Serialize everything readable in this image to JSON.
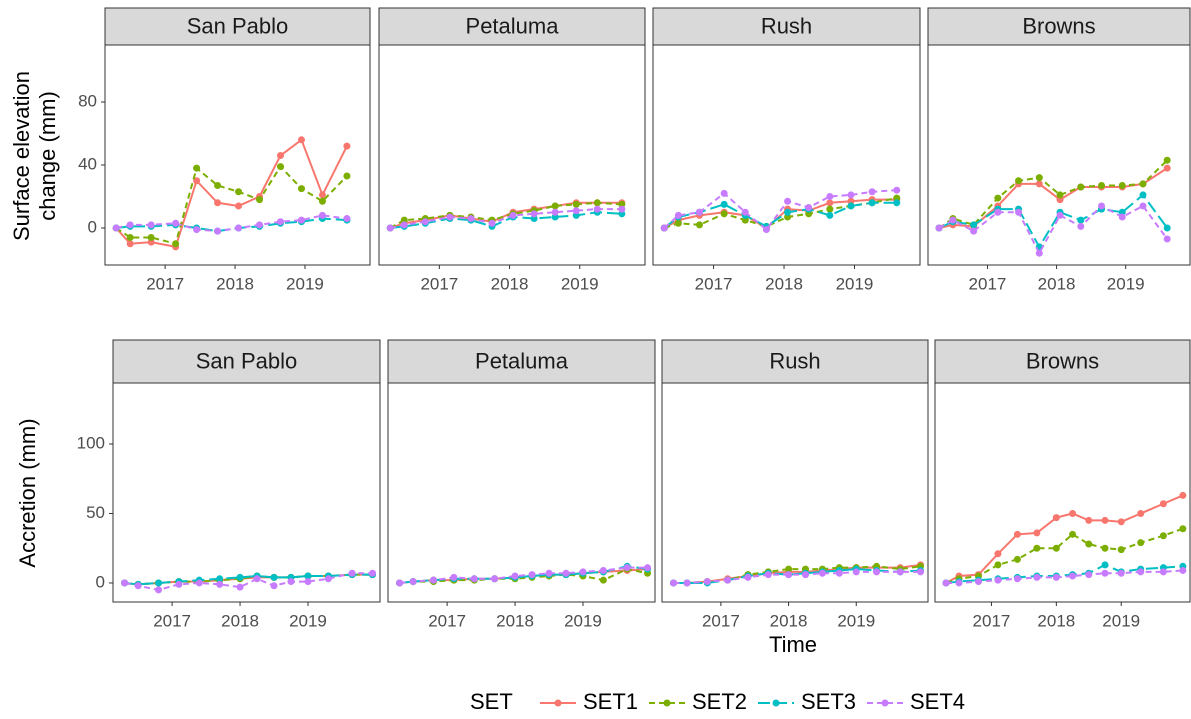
{
  "chart_data": [
    {
      "type": "line",
      "ylabel": "Surface elevation change (mm)",
      "x": [
        2016.3,
        2016.5,
        2016.8,
        2017.15,
        2017.45,
        2017.75,
        2018.05,
        2018.35,
        2018.65,
        2018.95,
        2019.25,
        2019.6
      ],
      "xlim": [
        2016.14,
        2019.93
      ],
      "xticks": [
        2017,
        2018,
        2019
      ],
      "ylim": [
        -23.5,
        116.2
      ],
      "yticks": [
        0,
        40,
        80
      ],
      "facets": [
        {
          "title": "San Pablo",
          "series": [
            {
              "name": "SET1",
              "color": "#F8766D",
              "dash": "solid",
              "values": [
                0,
                -10,
                -9,
                -12,
                30,
                16,
                14,
                20,
                46,
                56,
                21,
                52
              ]
            },
            {
              "name": "SET2",
              "color": "#7CAE00",
              "dash": "dashed",
              "values": [
                0,
                -6,
                -6,
                -10,
                38,
                27,
                23,
                18,
                39,
                25,
                17,
                33
              ]
            },
            {
              "name": "SET3",
              "color": "#00BFC4",
              "dash": "longdash",
              "values": [
                0,
                1,
                1,
                2,
                0,
                -2,
                0,
                1,
                3,
                4,
                6,
                5
              ]
            },
            {
              "name": "SET4",
              "color": "#C77CFF",
              "dash": "dashed",
              "values": [
                0,
                2,
                2,
                3,
                -1,
                -2,
                0,
                2,
                4,
                5,
                8,
                6
              ]
            }
          ]
        },
        {
          "title": "Petaluma",
          "series": [
            {
              "name": "SET1",
              "color": "#F8766D",
              "dash": "solid",
              "values": [
                0,
                3,
                5,
                8,
                6,
                4,
                10,
                12,
                14,
                16,
                16,
                16
              ]
            },
            {
              "name": "SET2",
              "color": "#7CAE00",
              "dash": "dashed",
              "values": [
                0,
                5,
                6,
                8,
                7,
                5,
                9,
                11,
                14,
                15,
                16,
                15
              ]
            },
            {
              "name": "SET3",
              "color": "#00BFC4",
              "dash": "longdash",
              "values": [
                0,
                1,
                3,
                6,
                5,
                1,
                7,
                6,
                7,
                8,
                10,
                9
              ]
            },
            {
              "name": "SET4",
              "color": "#C77CFF",
              "dash": "dashed",
              "values": [
                0,
                2,
                4,
                7,
                6,
                3,
                8,
                9,
                10,
                11,
                12,
                12
              ]
            }
          ]
        },
        {
          "title": "Rush",
          "series": [
            {
              "name": "SET1",
              "color": "#F8766D",
              "dash": "solid",
              "values": [
                0,
                5,
                8,
                10,
                8,
                0,
                12,
                11,
                16,
                17,
                18,
                18
              ]
            },
            {
              "name": "SET2",
              "color": "#7CAE00",
              "dash": "dashed",
              "values": [
                0,
                3,
                2,
                9,
                5,
                1,
                7,
                9,
                12,
                14,
                16,
                19
              ]
            },
            {
              "name": "SET3",
              "color": "#00BFC4",
              "dash": "longdash",
              "values": [
                0,
                7,
                10,
                15,
                8,
                1,
                10,
                12,
                8,
                14,
                16,
                16
              ]
            },
            {
              "name": "SET4",
              "color": "#C77CFF",
              "dash": "dashed",
              "values": [
                0,
                8,
                10,
                22,
                10,
                -1,
                17,
                13,
                20,
                21,
                23,
                24
              ]
            }
          ]
        },
        {
          "title": "Browns",
          "series": [
            {
              "name": "SET1",
              "color": "#F8766D",
              "dash": "solid",
              "values": [
                0,
                2,
                1,
                14,
                28,
                28,
                18,
                26,
                26,
                26,
                28,
                38
              ]
            },
            {
              "name": "SET2",
              "color": "#7CAE00",
              "dash": "dashed",
              "values": [
                0,
                6,
                2,
                19,
                30,
                32,
                21,
                26,
                27,
                27,
                28,
                43
              ]
            },
            {
              "name": "SET3",
              "color": "#00BFC4",
              "dash": "longdash",
              "values": [
                0,
                4,
                2,
                12,
                12,
                -12,
                10,
                5,
                12,
                10,
                21,
                0
              ]
            },
            {
              "name": "SET4",
              "color": "#C77CFF",
              "dash": "dashed",
              "values": [
                0,
                5,
                -2,
                10,
                10,
                -16,
                8,
                1,
                14,
                7,
                14,
                -7
              ]
            }
          ]
        }
      ]
    },
    {
      "type": "line",
      "ylabel": "Accretion (mm)",
      "xlabel": "Time",
      "x": [
        2016.3,
        2016.5,
        2016.8,
        2017.1,
        2017.4,
        2017.7,
        2018.0,
        2018.25,
        2018.5,
        2018.75,
        2019.0,
        2019.3,
        2019.65,
        2019.95
      ],
      "xlim": [
        2016.13,
        2020.06
      ],
      "xticks": [
        2017,
        2018,
        2019
      ],
      "ylim": [
        -13.7,
        143.9
      ],
      "yticks": [
        0,
        50,
        100
      ],
      "facets": [
        {
          "title": "San Pablo",
          "series": [
            {
              "name": "SET1",
              "color": "#F8766D",
              "dash": "solid",
              "values": [
                0,
                -1,
                0,
                1,
                1,
                2,
                3,
                4,
                4,
                4,
                5,
                5,
                6,
                6
              ]
            },
            {
              "name": "SET2",
              "color": "#7CAE00",
              "dash": "dashed",
              "values": [
                0,
                -1,
                0,
                1,
                1,
                2,
                3,
                5,
                4,
                4,
                5,
                5,
                6,
                6
              ]
            },
            {
              "name": "SET3",
              "color": "#00BFC4",
              "dash": "longdash",
              "values": [
                0,
                -1,
                0,
                1,
                2,
                3,
                4,
                5,
                4,
                4,
                5,
                5,
                6,
                6
              ]
            },
            {
              "name": "SET4",
              "color": "#C77CFF",
              "dash": "dashed",
              "values": [
                0,
                -2,
                -5,
                -1,
                0,
                -1,
                -3,
                3,
                -2,
                1,
                1,
                3,
                7,
                7
              ]
            }
          ]
        },
        {
          "title": "Petaluma",
          "series": [
            {
              "name": "SET1",
              "color": "#F8766D",
              "dash": "solid",
              "values": [
                0,
                1,
                2,
                2,
                3,
                3,
                4,
                5,
                6,
                6,
                7,
                8,
                9,
                10
              ]
            },
            {
              "name": "SET2",
              "color": "#7CAE00",
              "dash": "dashed",
              "values": [
                0,
                1,
                1,
                2,
                2,
                3,
                3,
                4,
                5,
                6,
                5,
                2,
                10,
                7
              ]
            },
            {
              "name": "SET3",
              "color": "#00BFC4",
              "dash": "longdash",
              "values": [
                0,
                1,
                2,
                3,
                3,
                3,
                4,
                5,
                6,
                6,
                7,
                8,
                12,
                10
              ]
            },
            {
              "name": "SET4",
              "color": "#C77CFF",
              "dash": "dashed",
              "values": [
                0,
                1,
                2,
                4,
                3,
                3,
                5,
                6,
                7,
                7,
                8,
                9,
                11,
                11
              ]
            }
          ]
        },
        {
          "title": "Rush",
          "series": [
            {
              "name": "SET1",
              "color": "#F8766D",
              "dash": "solid",
              "values": [
                0,
                0,
                1,
                3,
                5,
                7,
                8,
                8,
                9,
                10,
                11,
                11,
                11,
                13
              ]
            },
            {
              "name": "SET2",
              "color": "#7CAE00",
              "dash": "dashed",
              "values": [
                0,
                0,
                1,
                2,
                6,
                8,
                10,
                10,
                10,
                11,
                11,
                12,
                10,
                12
              ]
            },
            {
              "name": "SET3",
              "color": "#00BFC4",
              "dash": "longdash",
              "values": [
                0,
                0,
                0,
                2,
                5,
                7,
                6,
                7,
                8,
                9,
                10,
                9,
                8,
                9
              ]
            },
            {
              "name": "SET4",
              "color": "#C77CFF",
              "dash": "dashed",
              "values": [
                0,
                0,
                1,
                2,
                4,
                6,
                6,
                6,
                7,
                7,
                8,
                8,
                8,
                8
              ]
            }
          ]
        },
        {
          "title": "Browns",
          "series": [
            {
              "name": "SET1",
              "color": "#F8766D",
              "dash": "solid",
              "values": [
                0,
                5,
                6,
                21,
                35,
                36,
                47,
                50,
                45,
                45,
                44,
                50,
                57,
                63
              ]
            },
            {
              "name": "SET2",
              "color": "#7CAE00",
              "dash": "dashed",
              "values": [
                0,
                3,
                5,
                13,
                17,
                25,
                25,
                35,
                28,
                25,
                24,
                29,
                34,
                39
              ]
            },
            {
              "name": "SET3",
              "color": "#00BFC4",
              "dash": "longdash",
              "values": [
                0,
                1,
                2,
                3,
                4,
                5,
                5,
                6,
                7,
                13,
                8,
                10,
                11,
                12
              ]
            },
            {
              "name": "SET4",
              "color": "#C77CFF",
              "dash": "dashed",
              "values": [
                0,
                0,
                1,
                2,
                3,
                4,
                4,
                5,
                6,
                7,
                7,
                8,
                8,
                9
              ]
            }
          ]
        }
      ]
    }
  ],
  "legend": {
    "title": "SET",
    "position": "bottom"
  }
}
